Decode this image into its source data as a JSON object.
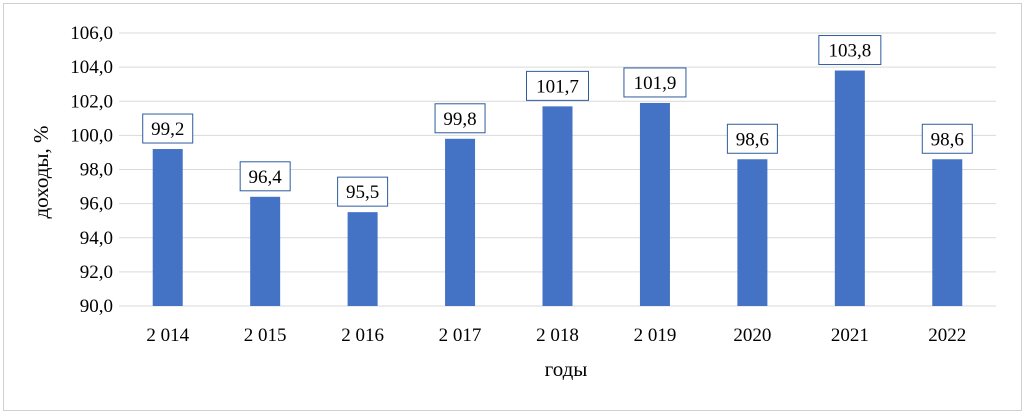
{
  "chart_data": {
    "type": "bar",
    "categories": [
      "2 014",
      "2 015",
      "2 016",
      "2 017",
      "2 018",
      "2 019",
      "2020",
      "2021",
      "2022"
    ],
    "values": [
      99.2,
      96.4,
      95.5,
      99.8,
      101.7,
      101.9,
      98.6,
      103.8,
      98.6
    ],
    "value_labels": [
      "99,2",
      "96,4",
      "95,5",
      "99,8",
      "101,7",
      "101,9",
      "98,6",
      "103,8",
      "98,6"
    ],
    "xlabel": "годы",
    "ylabel": "доходы, %",
    "ylim": [
      90,
      106
    ],
    "yticks": [
      90,
      92,
      94,
      96,
      98,
      100,
      102,
      104,
      106
    ],
    "ytick_labels": [
      "90,0",
      "92,0",
      "94,0",
      "96,0",
      "98,0",
      "100,0",
      "102,0",
      "104,0",
      "106,0"
    ],
    "grid": true,
    "legend": "none",
    "bar_color": "#4472c4",
    "label_border_color": "#2e5c9e"
  }
}
